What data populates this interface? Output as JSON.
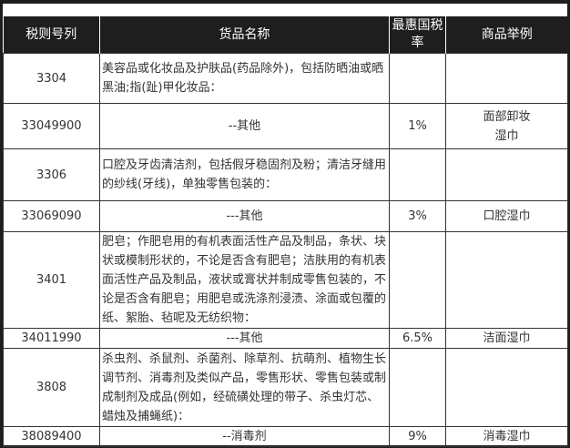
{
  "headers": [
    "税则号列",
    "货品名称",
    "最惠国税率",
    "商品举例"
  ],
  "rows": [
    {
      "code": "3304",
      "name": "美容品或化妆品及护肤品(药品除外)，包括防晒油或晒黑油;指(趾)甲化妆品：",
      "rate": "",
      "example": ""
    },
    {
      "code": "33049900",
      "name": "--其他",
      "rate": "1%",
      "example": "面部卸妆湿巾"
    },
    {
      "code": "3306",
      "name": "口腔及牙齿清洁剂，包括假牙稳固剂及粉；清洁牙缝用的纱线(牙线)，单独零售包装的：",
      "rate": "",
      "example": ""
    },
    {
      "code": "33069090",
      "name": "---其他",
      "rate": "3%",
      "example": "口腔湿巾"
    },
    {
      "code": "3401",
      "name": "肥皂；作肥皂用的有机表面活性产品及制品，条状、块状或模制形状的，不论是否含有肥皂；洁肤用的有机表面活性产品及制品，液状或膏状并制成零售包装的，不论是否含有肥皂；用肥皂或洗涤剂浸渍、涂面或包覆的纸、絮胎、毡呢及无纺织物：",
      "rate": "",
      "example": ""
    },
    {
      "code": "34011990",
      "name": "---其他",
      "rate": "6.5%",
      "example": "洁面湿巾"
    },
    {
      "code": "3808",
      "name": "杀虫剂、杀鼠剂、杀菌剂、除草剂、抗萌剂、植物生长调节剂、消毒剂及类似产品，零售形状、零售包装或制成制剂及成品(例如，经硫磺处理的带子、杀虫灯芯、蜡烛及捕蝇纸)：",
      "rate": "",
      "example": ""
    },
    {
      "code": "38089400",
      "name": "--消毒剂",
      "rate": "9%",
      "example": "消毒湿巾"
    }
  ]
}
